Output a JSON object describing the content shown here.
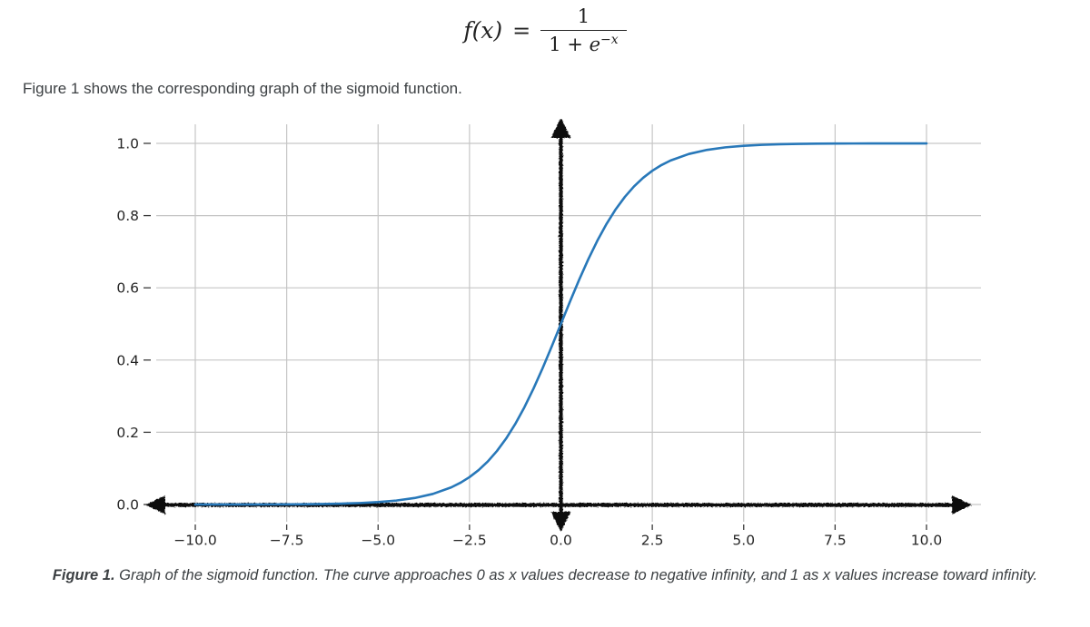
{
  "formula": {
    "lhs": "f(x)",
    "equals": "=",
    "numerator": "1",
    "denominator_pre": "1 + ",
    "denominator_var": "e",
    "exponent": "−x"
  },
  "intro_text": "Figure 1 shows the corresponding graph of the sigmoid function.",
  "caption": {
    "label": "Figure 1.",
    "text": " Graph of the sigmoid function. The curve approaches 0 as x values decrease to negative infinity, and 1 as x values increase toward infinity."
  },
  "chart_data": {
    "type": "line",
    "title": "",
    "xlabel": "",
    "ylabel": "",
    "xlim": [
      -11.1,
      11.5
    ],
    "ylim": [
      -0.04,
      1.05
    ],
    "grid": true,
    "legend": "none",
    "axis_style": "hand-drawn thick black axes with arrowheads on both ends, crossing at origin",
    "x_tick_values": [
      -10,
      -7.5,
      -5,
      -2.5,
      0,
      2.5,
      5,
      7.5,
      10
    ],
    "x_tick_labels": [
      "−10.0",
      "−7.5",
      "−5.0",
      "−2.5",
      "0.0",
      "2.5",
      "5.0",
      "7.5",
      "10.0"
    ],
    "y_tick_values": [
      0,
      0.2,
      0.4,
      0.6,
      0.8,
      1
    ],
    "y_tick_labels": [
      "0.0",
      "0.2",
      "0.4",
      "0.6",
      "0.8",
      "1.0"
    ],
    "colors": {
      "curve": "#2878b9",
      "grid": "#c6c6c6",
      "axis": "#111111",
      "tick": "#3a3a3a",
      "tick_label": "#262626"
    },
    "series": [
      {
        "name": "sigmoid f(x) = 1/(1+e^−x)",
        "x": [
          -10,
          -9.5,
          -9,
          -8.5,
          -8,
          -7.5,
          -7,
          -6.5,
          -6,
          -5.5,
          -5,
          -4.5,
          -4,
          -3.5,
          -3,
          -2.75,
          -2.5,
          -2.25,
          -2,
          -1.75,
          -1.5,
          -1.25,
          -1,
          -0.75,
          -0.5,
          -0.25,
          0,
          0.25,
          0.5,
          0.75,
          1,
          1.25,
          1.5,
          1.75,
          2,
          2.25,
          2.5,
          2.75,
          3,
          3.5,
          4,
          4.5,
          5,
          5.5,
          6,
          6.5,
          7,
          7.5,
          8,
          8.5,
          9,
          9.5,
          10
        ],
        "y": [
          4.5e-05,
          7.5e-05,
          0.000123,
          0.000203,
          0.000335,
          0.000553,
          0.000911,
          0.001503,
          0.002473,
          0.00407,
          0.006693,
          0.010987,
          0.017986,
          0.029312,
          0.047426,
          0.060087,
          0.075858,
          0.095349,
          0.119203,
          0.148047,
          0.182426,
          0.2227,
          0.268941,
          0.320821,
          0.377541,
          0.437823,
          0.5,
          0.562177,
          0.622459,
          0.679179,
          0.731059,
          0.7773,
          0.817574,
          0.851953,
          0.880797,
          0.904651,
          0.924142,
          0.939913,
          0.952574,
          0.970688,
          0.982014,
          0.989013,
          0.993307,
          0.99593,
          0.997527,
          0.998497,
          0.999089,
          0.999447,
          0.999665,
          0.999797,
          0.999877,
          0.999925,
          0.999955
        ]
      }
    ]
  }
}
